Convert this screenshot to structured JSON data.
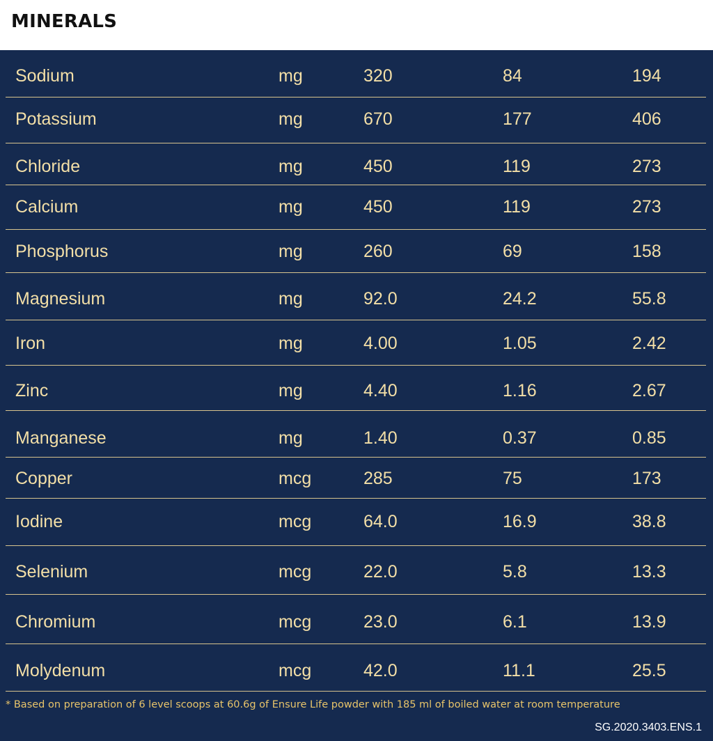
{
  "title": "MINERALS",
  "rows": [
    {
      "name": "Sodium",
      "unit": "mg",
      "v1": "320",
      "v2": "84",
      "v3": "194"
    },
    {
      "name": "Potassium",
      "unit": "mg",
      "v1": "670",
      "v2": "177",
      "v3": "406"
    },
    {
      "name": "Chloride",
      "unit": "mg",
      "v1": "450",
      "v2": "119",
      "v3": "273"
    },
    {
      "name": "Calcium",
      "unit": "mg",
      "v1": "450",
      "v2": "119",
      "v3": "273"
    },
    {
      "name": "Phosphorus",
      "unit": "mg",
      "v1": "260",
      "v2": "69",
      "v3": "158"
    },
    {
      "name": "Magnesium",
      "unit": "mg",
      "v1": "92.0",
      "v2": "24.2",
      "v3": "55.8"
    },
    {
      "name": "Iron",
      "unit": "mg",
      "v1": "4.00",
      "v2": "1.05",
      "v3": "2.42"
    },
    {
      "name": "Zinc",
      "unit": "mg",
      "v1": "4.40",
      "v2": "1.16",
      "v3": "2.67"
    },
    {
      "name": "Manganese",
      "unit": "mg",
      "v1": "1.40",
      "v2": "0.37",
      "v3": "0.85"
    },
    {
      "name": "Copper",
      "unit": "mcg",
      "v1": "285",
      "v2": "75",
      "v3": "173"
    },
    {
      "name": "Iodine",
      "unit": "mcg",
      "v1": "64.0",
      "v2": "16.9",
      "v3": "38.8"
    },
    {
      "name": "Selenium",
      "unit": "mcg",
      "v1": "22.0",
      "v2": "5.8",
      "v3": "13.3"
    },
    {
      "name": "Chromium",
      "unit": "mcg",
      "v1": "23.0",
      "v2": "6.1",
      "v3": "13.9"
    },
    {
      "name": "Molydenum",
      "unit": "mcg",
      "v1": "42.0",
      "v2": "11.1",
      "v3": "25.5"
    }
  ],
  "footnote": "* Based on preparation of 6 level scoops at 60.6g of Ensure Life powder with 185 ml of boiled water at room temperature",
  "code": "SG.2020.3403.ENS.1"
}
